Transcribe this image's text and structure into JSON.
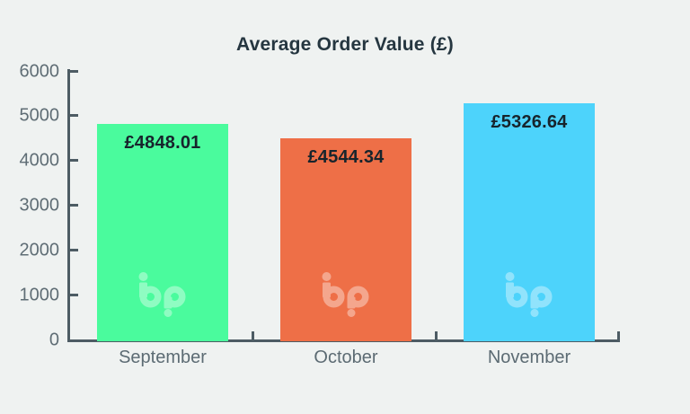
{
  "chart_data": {
    "type": "bar",
    "title": "Average Order Value (£)",
    "categories": [
      "September",
      "October",
      "November"
    ],
    "values": [
      4848.01,
      4544.34,
      5326.64
    ],
    "value_labels": [
      "£4848.01",
      "£4544.34",
      "£5326.64"
    ],
    "bar_colors": [
      "#4afb9d",
      "#ee6f47",
      "#4dd3fb"
    ],
    "ylim": [
      0,
      6000
    ],
    "ytick_interval": 1000,
    "ytick_labels": [
      "6000",
      "5000",
      "4000",
      "3000",
      "2000",
      "1000",
      "0"
    ],
    "xlabel": "",
    "ylabel": "",
    "grid": "off",
    "legend": "none",
    "watermark": "bp"
  },
  "colors": {
    "background": "#eff2f1",
    "axis": "#4d5c64",
    "tick_label": "#5f6d75",
    "category_label": "#5c6b73",
    "title": "#253640",
    "value_label": "#17242c",
    "watermark_overlay": "rgba(255,255,255,0.38)"
  }
}
